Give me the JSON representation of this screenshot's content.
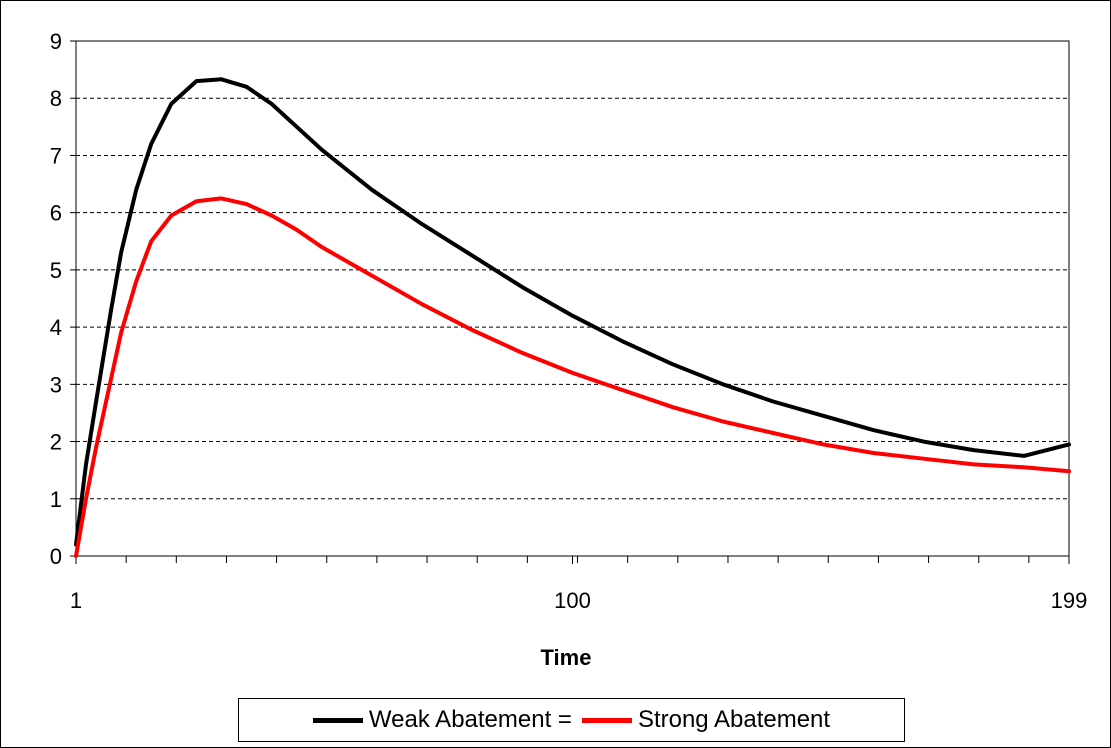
{
  "chart_data": {
    "type": "line",
    "title": "",
    "xlabel": "Time",
    "ylabel": "",
    "xlim": [
      1,
      199
    ],
    "ylim": [
      0,
      9
    ],
    "x_ticks": [
      1,
      100,
      199
    ],
    "y_ticks": [
      0,
      1,
      2,
      3,
      4,
      5,
      6,
      7,
      8,
      9
    ],
    "grid": "horizontal dashed",
    "legend_position": "bottom",
    "series": [
      {
        "name": "Weak Abatement =",
        "color": "#000000",
        "x": [
          1,
          3,
          5,
          8,
          10,
          13,
          16,
          20,
          25,
          30,
          35,
          40,
          45,
          50,
          60,
          70,
          80,
          90,
          100,
          110,
          120,
          130,
          140,
          150,
          160,
          170,
          180,
          190,
          199
        ],
        "values": [
          0.2,
          1.6,
          2.7,
          4.3,
          5.3,
          6.4,
          7.2,
          7.9,
          8.3,
          8.33,
          8.2,
          7.9,
          7.5,
          7.1,
          6.4,
          5.8,
          5.25,
          4.7,
          4.2,
          3.75,
          3.35,
          3.0,
          2.7,
          2.45,
          2.2,
          2.0,
          1.85,
          1.75,
          1.95
        ]
      },
      {
        "name": "Strong Abatement",
        "color": "#ff0000",
        "x": [
          1,
          3,
          5,
          8,
          10,
          13,
          16,
          20,
          25,
          30,
          35,
          40,
          45,
          50,
          60,
          70,
          80,
          90,
          100,
          110,
          120,
          130,
          140,
          150,
          160,
          170,
          180,
          190,
          199
        ],
        "values": [
          0.0,
          1.0,
          1.9,
          3.1,
          3.9,
          4.8,
          5.5,
          5.95,
          6.2,
          6.25,
          6.15,
          5.95,
          5.7,
          5.4,
          4.9,
          4.4,
          3.95,
          3.55,
          3.2,
          2.9,
          2.6,
          2.35,
          2.15,
          1.95,
          1.8,
          1.7,
          1.6,
          1.55,
          1.48
        ]
      }
    ]
  }
}
